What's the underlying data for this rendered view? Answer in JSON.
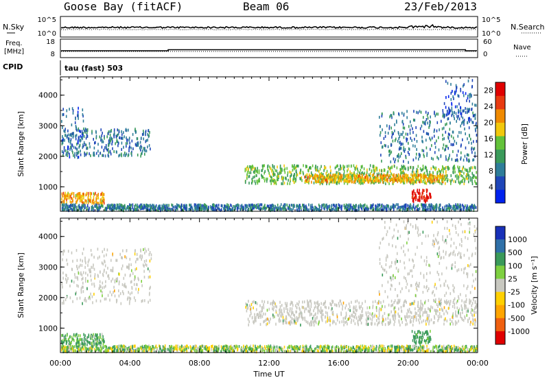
{
  "header": {
    "station": "Goose Bay (fitACF)",
    "beam": "Beam 06",
    "date": "23/Feb/2013"
  },
  "side_labels": {
    "nsky": "N.Sky",
    "nsearch": "N.Search",
    "freq_line1": "Freq.",
    "freq_line2": "[MHz]",
    "nave": "Nave",
    "cpid": "CPID",
    "cpid_value": "tau (fast) 503"
  },
  "strip_ticks": {
    "noise_left": [
      "10^5",
      "10^0"
    ],
    "noise_right": [
      "10^5",
      "10^0"
    ],
    "freq_left": [
      "18",
      "8"
    ],
    "nave_right": [
      "60",
      "0"
    ]
  },
  "colors": {
    "power_scale": [
      "#0022ee",
      "#1f46b8",
      "#2e7d99",
      "#3a9a5a",
      "#63c23a",
      "#f2c80c",
      "#f08a00",
      "#e83a10",
      "#e00000"
    ],
    "velocity_scale": [
      "#e00000",
      "#f06010",
      "#ffa500",
      "#ffd000",
      "#c8c8c0",
      "#7ed040",
      "#3a9a5a",
      "#2f70a8",
      "#1830b8"
    ],
    "ground_scatter": "#c8c8c0"
  },
  "chart_data": [
    {
      "type": "heatmap",
      "name": "power-panel",
      "xlabel": "Time UT",
      "ylabel": "Slant Range [km]",
      "xlim": [
        0,
        24
      ],
      "ylim": [
        200,
        4600
      ],
      "x_ticks": [
        "00:00",
        "04:00",
        "08:00",
        "12:00",
        "16:00",
        "20:00",
        "00:00"
      ],
      "y_ticks": [
        1000,
        2000,
        3000,
        4000
      ],
      "colorbar_label": "Power [dB]",
      "colorbar_ticks": [
        4,
        8,
        12,
        16,
        20,
        24,
        28
      ],
      "colorbar_range": [
        0,
        30
      ],
      "echo_regions": [
        {
          "t0": 0.0,
          "t1": 5.2,
          "r0": 2000,
          "r1": 2900,
          "level": 8
        },
        {
          "t0": 0.0,
          "t1": 1.3,
          "r0": 1900,
          "r1": 3600,
          "level": 6
        },
        {
          "t0": 0.0,
          "t1": 2.5,
          "r0": 450,
          "r1": 800,
          "level": 20
        },
        {
          "t0": 0.0,
          "t1": 24.0,
          "r0": 200,
          "r1": 420,
          "level": 8
        },
        {
          "t0": 10.6,
          "t1": 24.0,
          "r0": 1100,
          "r1": 1700,
          "level": 14
        },
        {
          "t0": 14.0,
          "t1": 22.0,
          "r0": 1150,
          "r1": 1400,
          "level": 20
        },
        {
          "t0": 20.2,
          "t1": 21.3,
          "r0": 500,
          "r1": 900,
          "level": 28
        },
        {
          "t0": 18.3,
          "t1": 24.0,
          "r0": 1800,
          "r1": 3500,
          "level": 8
        },
        {
          "t0": 22.0,
          "t1": 24.0,
          "r0": 3000,
          "r1": 4500,
          "level": 6
        }
      ]
    },
    {
      "type": "heatmap",
      "name": "velocity-panel",
      "xlabel": "Time UT",
      "ylabel": "Slant Range [km]",
      "xlim": [
        0,
        24
      ],
      "ylim": [
        200,
        4600
      ],
      "x_ticks": [
        "00:00",
        "04:00",
        "08:00",
        "12:00",
        "16:00",
        "20:00",
        "00:00"
      ],
      "y_ticks": [
        1000,
        2000,
        3000,
        4000
      ],
      "colorbar_label": "Velocity [m s⁻¹]",
      "colorbar_ticks": [
        "1000",
        "500",
        "100",
        "25",
        "-25",
        "-100",
        "-500",
        "-1000"
      ],
      "echo_regions": [
        {
          "t0": 0.0,
          "t1": 5.2,
          "r0": 1800,
          "r1": 3600,
          "level": 0
        },
        {
          "t0": 0.0,
          "t1": 2.5,
          "r0": 450,
          "r1": 800,
          "level": 150
        },
        {
          "t0": 0.0,
          "t1": 24.0,
          "r0": 200,
          "r1": 420,
          "level": 50
        },
        {
          "t0": 10.6,
          "t1": 24.0,
          "r0": 1100,
          "r1": 1900,
          "level": 0
        },
        {
          "t0": 20.2,
          "t1": 21.3,
          "r0": 500,
          "r1": 900,
          "level": 200
        },
        {
          "t0": 18.3,
          "t1": 24.0,
          "r0": 1800,
          "r1": 4500,
          "level": 0
        }
      ]
    }
  ]
}
